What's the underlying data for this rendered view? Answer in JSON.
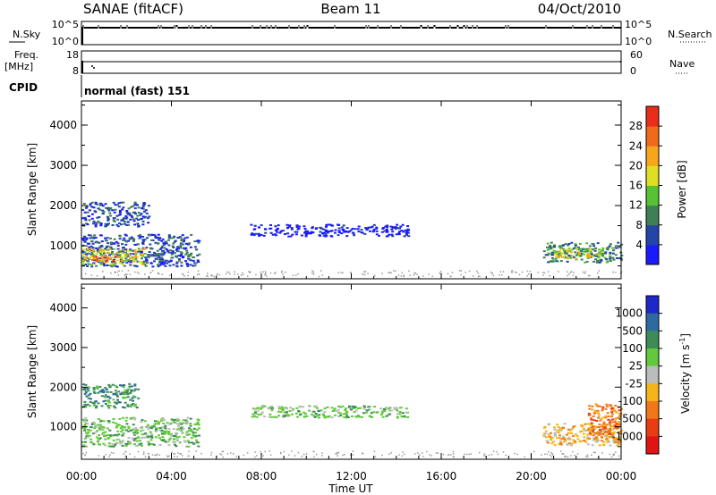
{
  "header": {
    "station": "SANAE (fitACF)",
    "beam": "Beam 11",
    "date": "04/Oct/2010"
  },
  "noise_panel": {
    "left_label": "N.Sky",
    "right_label": "N.Search",
    "left_ticks": [
      "10^5",
      "10^0"
    ],
    "right_ticks": [
      "10^5",
      "10^0"
    ]
  },
  "freq_panel": {
    "left_label_line1": "Freq.",
    "left_label_line2": "[MHz]",
    "right_label": "Nave",
    "left_ticks": [
      "18",
      "8"
    ],
    "right_ticks": [
      "60",
      "0"
    ]
  },
  "cpid": {
    "label": "CPID",
    "value": "normal (fast) 151"
  },
  "axes": {
    "ylabel": "Slant Range [km]",
    "xlabel": "Time UT",
    "y_ticks": [
      "1000",
      "2000",
      "3000",
      "4000"
    ],
    "x_ticks": [
      "00:00",
      "04:00",
      "08:00",
      "12:00",
      "16:00",
      "20:00",
      "00:00"
    ]
  },
  "power_colorbar": {
    "label": "Power [dB]",
    "ticks": [
      "4",
      "8",
      "12",
      "16",
      "20",
      "24",
      "28"
    ],
    "colors": [
      "#1a1aff",
      "#2444a8",
      "#3e7f56",
      "#57c234",
      "#dede22",
      "#f7a61c",
      "#ef6a1a",
      "#e82d1a"
    ]
  },
  "velocity_colorbar": {
    "label": "Velocity [m s",
    "label_sup": "-1",
    "label_end": "]",
    "ticks": [
      "1000",
      "500",
      "100",
      "25",
      "-25",
      "-100",
      "-500",
      "-1000"
    ],
    "colors": [
      "#1e28c8",
      "#2e6aa0",
      "#3d8c58",
      "#62c83c",
      "#bcbcbc",
      "#f5b41a",
      "#f07818",
      "#e83c14",
      "#e01414"
    ]
  },
  "chart_data": {
    "type": "heatmap",
    "x_range": [
      "00:00",
      "24:00"
    ],
    "ylim": [
      180,
      4600
    ],
    "power_regions": [
      {
        "t0": 0.0,
        "t1": 5.2,
        "r0": 500,
        "r1": 1300,
        "level": "8"
      },
      {
        "t0": 0.0,
        "t1": 2.8,
        "r0": 550,
        "r1": 950,
        "level": "20"
      },
      {
        "t0": 0.0,
        "t1": 1.5,
        "r0": 620,
        "r1": 800,
        "level": "28"
      },
      {
        "t0": 0.0,
        "t1": 3.0,
        "r0": 1500,
        "r1": 2100,
        "level": "8"
      },
      {
        "t0": 7.5,
        "t1": 14.5,
        "r0": 1250,
        "r1": 1550,
        "level": "4"
      },
      {
        "t0": 20.5,
        "t1": 24.0,
        "r0": 600,
        "r1": 1100,
        "level": "12"
      },
      {
        "t0": 21.0,
        "t1": 23.2,
        "r0": 700,
        "r1": 950,
        "level": "20"
      }
    ],
    "velocity_regions": [
      {
        "t0": 0.0,
        "t1": 5.2,
        "r0": 520,
        "r1": 1250,
        "level": "25"
      },
      {
        "t0": 0.0,
        "t1": 2.5,
        "r0": 1500,
        "r1": 2100,
        "level": "100"
      },
      {
        "t0": 7.5,
        "t1": 14.5,
        "r0": 1250,
        "r1": 1550,
        "level": "25"
      },
      {
        "t0": 20.5,
        "t1": 24.0,
        "r0": 550,
        "r1": 1100,
        "level": "-100"
      },
      {
        "t0": 22.5,
        "t1": 24.0,
        "r0": 700,
        "r1": 1600,
        "level": "-500"
      }
    ]
  }
}
